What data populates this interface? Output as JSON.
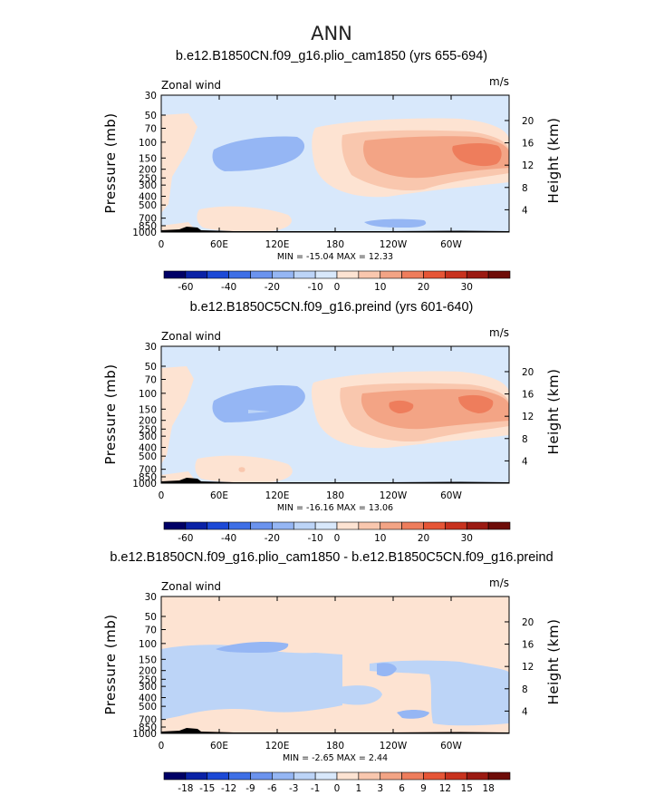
{
  "figure_title": "ANN",
  "chart_data": [
    {
      "type": "contour",
      "title": "b.e12.B1850CN.f09_g16.plio_cam1850 (yrs 655-694)",
      "left_string": "Zonal wind",
      "right_string": "m/s",
      "xlabel": "",
      "ylabel": "Pressure (mb)",
      "ylabel_right": "Height (km)",
      "x_ticks": [
        "0",
        "60E",
        "120E",
        "180",
        "120W",
        "60W"
      ],
      "x_tick_values": [
        0,
        60,
        120,
        180,
        240,
        300
      ],
      "xlim": [
        0,
        360
      ],
      "y_ticks": [
        "30",
        "50",
        "70",
        "100",
        "150",
        "200",
        "250",
        "300",
        "400",
        "500",
        "700",
        "850",
        "1000"
      ],
      "y_tick_values": [
        30,
        50,
        70,
        100,
        150,
        200,
        250,
        300,
        400,
        500,
        700,
        850,
        1000
      ],
      "ylim": [
        1000,
        30
      ],
      "height_ticks": [
        "4",
        "8",
        "12",
        "16",
        "20"
      ],
      "height_tick_values": [
        4,
        8,
        12,
        16,
        20
      ],
      "min_max_text": "MIN = -15.04   MAX =  12.33",
      "min": -15.04,
      "max": 12.33,
      "colorbar_labels": [
        "-60",
        "-40",
        "-20",
        "-10",
        "0",
        "10",
        "20",
        "30"
      ],
      "colorbar_levels": [
        -60,
        -50,
        -40,
        -30,
        -20,
        -15,
        -10,
        -5,
        0,
        5,
        10,
        15,
        20,
        25,
        30
      ]
    },
    {
      "type": "contour",
      "title": "b.e12.B1850C5CN.f09_g16.preind (yrs 601-640)",
      "left_string": "Zonal wind",
      "right_string": "m/s",
      "xlabel": "",
      "ylabel": "Pressure (mb)",
      "ylabel_right": "Height (km)",
      "x_ticks": [
        "0",
        "60E",
        "120E",
        "180",
        "120W",
        "60W"
      ],
      "x_tick_values": [
        0,
        60,
        120,
        180,
        240,
        300
      ],
      "xlim": [
        0,
        360
      ],
      "y_ticks": [
        "30",
        "50",
        "70",
        "100",
        "150",
        "200",
        "250",
        "300",
        "400",
        "500",
        "700",
        "850",
        "1000"
      ],
      "y_tick_values": [
        30,
        50,
        70,
        100,
        150,
        200,
        250,
        300,
        400,
        500,
        700,
        850,
        1000
      ],
      "ylim": [
        1000,
        30
      ],
      "height_ticks": [
        "4",
        "8",
        "12",
        "16",
        "20"
      ],
      "height_tick_values": [
        4,
        8,
        12,
        16,
        20
      ],
      "min_max_text": "MIN = -16.16   MAX =  13.06",
      "min": -16.16,
      "max": 13.06,
      "colorbar_labels": [
        "-60",
        "-40",
        "-20",
        "-10",
        "0",
        "10",
        "20",
        "30"
      ],
      "colorbar_levels": [
        -60,
        -50,
        -40,
        -30,
        -20,
        -15,
        -10,
        -5,
        0,
        5,
        10,
        15,
        20,
        25,
        30
      ]
    },
    {
      "type": "contour",
      "title": "b.e12.B1850CN.f09_g16.plio_cam1850 - b.e12.B1850C5CN.f09_g16.preind",
      "left_string": "Zonal wind",
      "right_string": "m/s",
      "xlabel": "",
      "ylabel": "Pressure (mb)",
      "ylabel_right": "Height (km)",
      "x_ticks": [
        "0",
        "60E",
        "120E",
        "180",
        "120W",
        "60W"
      ],
      "x_tick_values": [
        0,
        60,
        120,
        180,
        240,
        300
      ],
      "xlim": [
        0,
        360
      ],
      "y_ticks": [
        "30",
        "50",
        "70",
        "100",
        "150",
        "200",
        "250",
        "300",
        "400",
        "500",
        "700",
        "850",
        "1000"
      ],
      "y_tick_values": [
        30,
        50,
        70,
        100,
        150,
        200,
        250,
        300,
        400,
        500,
        700,
        850,
        1000
      ],
      "ylim": [
        1000,
        30
      ],
      "height_ticks": [
        "4",
        "8",
        "12",
        "16",
        "20"
      ],
      "height_tick_values": [
        4,
        8,
        12,
        16,
        20
      ],
      "min_max_text": "MIN =  -2.65   MAX =   2.44",
      "min": -2.65,
      "max": 2.44,
      "colorbar_labels": [
        "-18",
        "-15",
        "-12",
        "-9",
        "-6",
        "-3",
        "-1",
        "0",
        "1",
        "3",
        "6",
        "9",
        "12",
        "15",
        "18"
      ],
      "colorbar_levels": [
        -18,
        -15,
        -12,
        -9,
        -6,
        -3,
        -1,
        0,
        1,
        3,
        6,
        9,
        12,
        15,
        18
      ]
    }
  ],
  "colors": {
    "colorbar": [
      "#000066",
      "#0a22a6",
      "#1c49d6",
      "#3e6fe6",
      "#6b93ee",
      "#95b6f4",
      "#bcd4f7",
      "#d8e8fb",
      "#fde3d2",
      "#f9c7ae",
      "#f3a485",
      "#ee7d5c",
      "#e65536",
      "#c8321e",
      "#9b1a12",
      "#6e0c08"
    ],
    "background_fill": "#d8e8fb",
    "light_red": "#fde3d2",
    "light_blue": "#bcd4f7",
    "mid_blue": "#95b6f4",
    "mid_red": "#f9c7ae",
    "red": "#f3a485",
    "strong_red": "#ee7d5c",
    "strongest_red": "#e65536",
    "topography": "#000000"
  }
}
